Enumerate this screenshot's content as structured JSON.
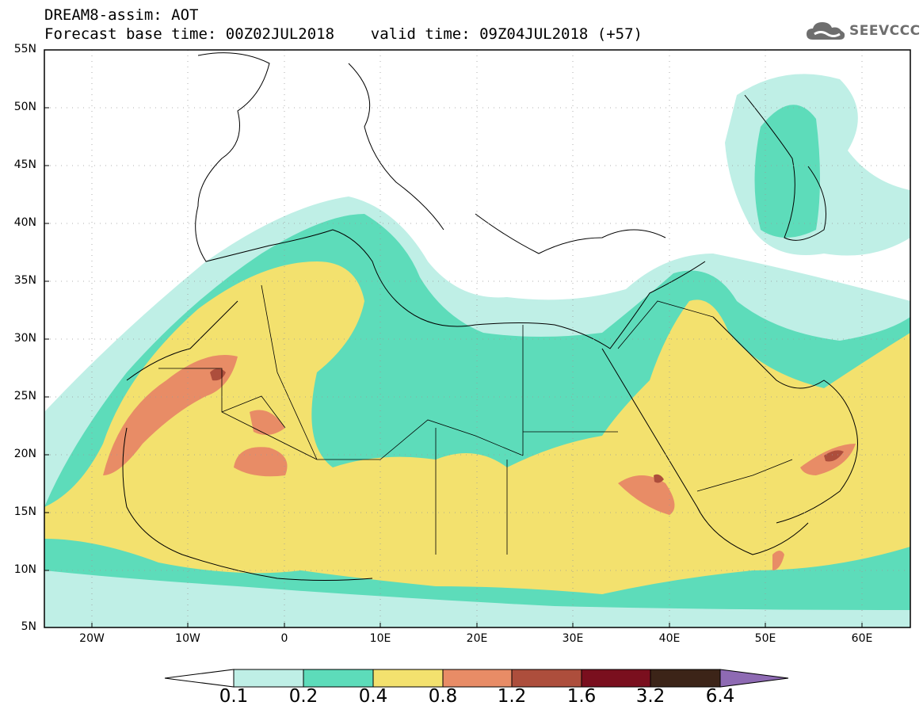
{
  "header": {
    "line1": "DREAM8-assim: AOT",
    "line2": "Forecast base time: 00Z02JUL2018    valid time: 09Z04JUL2018 (+57)"
  },
  "logo": {
    "text": "SEEVCCC",
    "icon": "cloud-icon"
  },
  "map": {
    "variable": "AOT",
    "lon_range": [
      -25,
      65
    ],
    "lat_range": [
      5,
      55
    ],
    "lat_labels": [
      "55N",
      "50N",
      "45N",
      "40N",
      "35N",
      "30N",
      "25N",
      "20N",
      "15N",
      "10N",
      "5N"
    ],
    "lon_labels": [
      "20W",
      "10W",
      "0",
      "10E",
      "20E",
      "30E",
      "40E",
      "50E",
      "60E"
    ],
    "gridlines": "dotted"
  },
  "colorbar": {
    "labels": [
      "0.1",
      "0.2",
      "0.4",
      "0.8",
      "1.2",
      "1.6",
      "3.2",
      "6.4"
    ],
    "colors": [
      "#bfefe6",
      "#5ddcba",
      "#f3e16e",
      "#e88c66",
      "#ad4e3c",
      "#7a0f1e",
      "#3c2418",
      "#8e6ab3"
    ],
    "under_color": "#ffffff"
  }
}
